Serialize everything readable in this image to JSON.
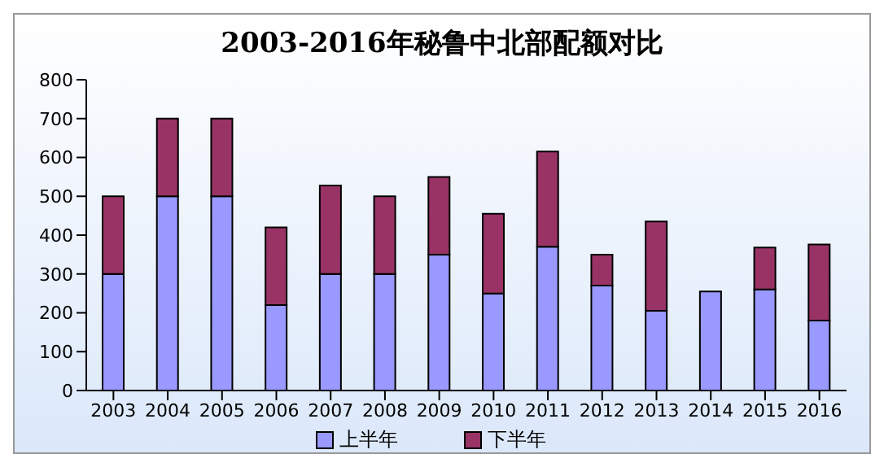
{
  "chart_data": {
    "type": "bar",
    "title": "2003-2016年秘鲁中北部配额对比",
    "categories": [
      "2003",
      "2004",
      "2005",
      "2006",
      "2007",
      "2008",
      "2009",
      "2010",
      "2011",
      "2012",
      "2013",
      "2014",
      "2015",
      "2016"
    ],
    "stacked": true,
    "series": [
      {
        "name": "上半年",
        "color": "#9999ff",
        "values": [
          300,
          500,
          500,
          220,
          300,
          300,
          350,
          250,
          370,
          270,
          205,
          255,
          260,
          180
        ]
      },
      {
        "name": "下半年",
        "color": "#993366",
        "values": [
          200,
          200,
          200,
          200,
          228,
          200,
          200,
          205,
          245,
          80,
          230,
          0,
          108,
          196
        ]
      }
    ],
    "ylim": [
      0,
      800
    ],
    "yticks": [
      0,
      100,
      200,
      300,
      400,
      500,
      600,
      700,
      800
    ],
    "grid": false,
    "legend": "bottom"
  }
}
